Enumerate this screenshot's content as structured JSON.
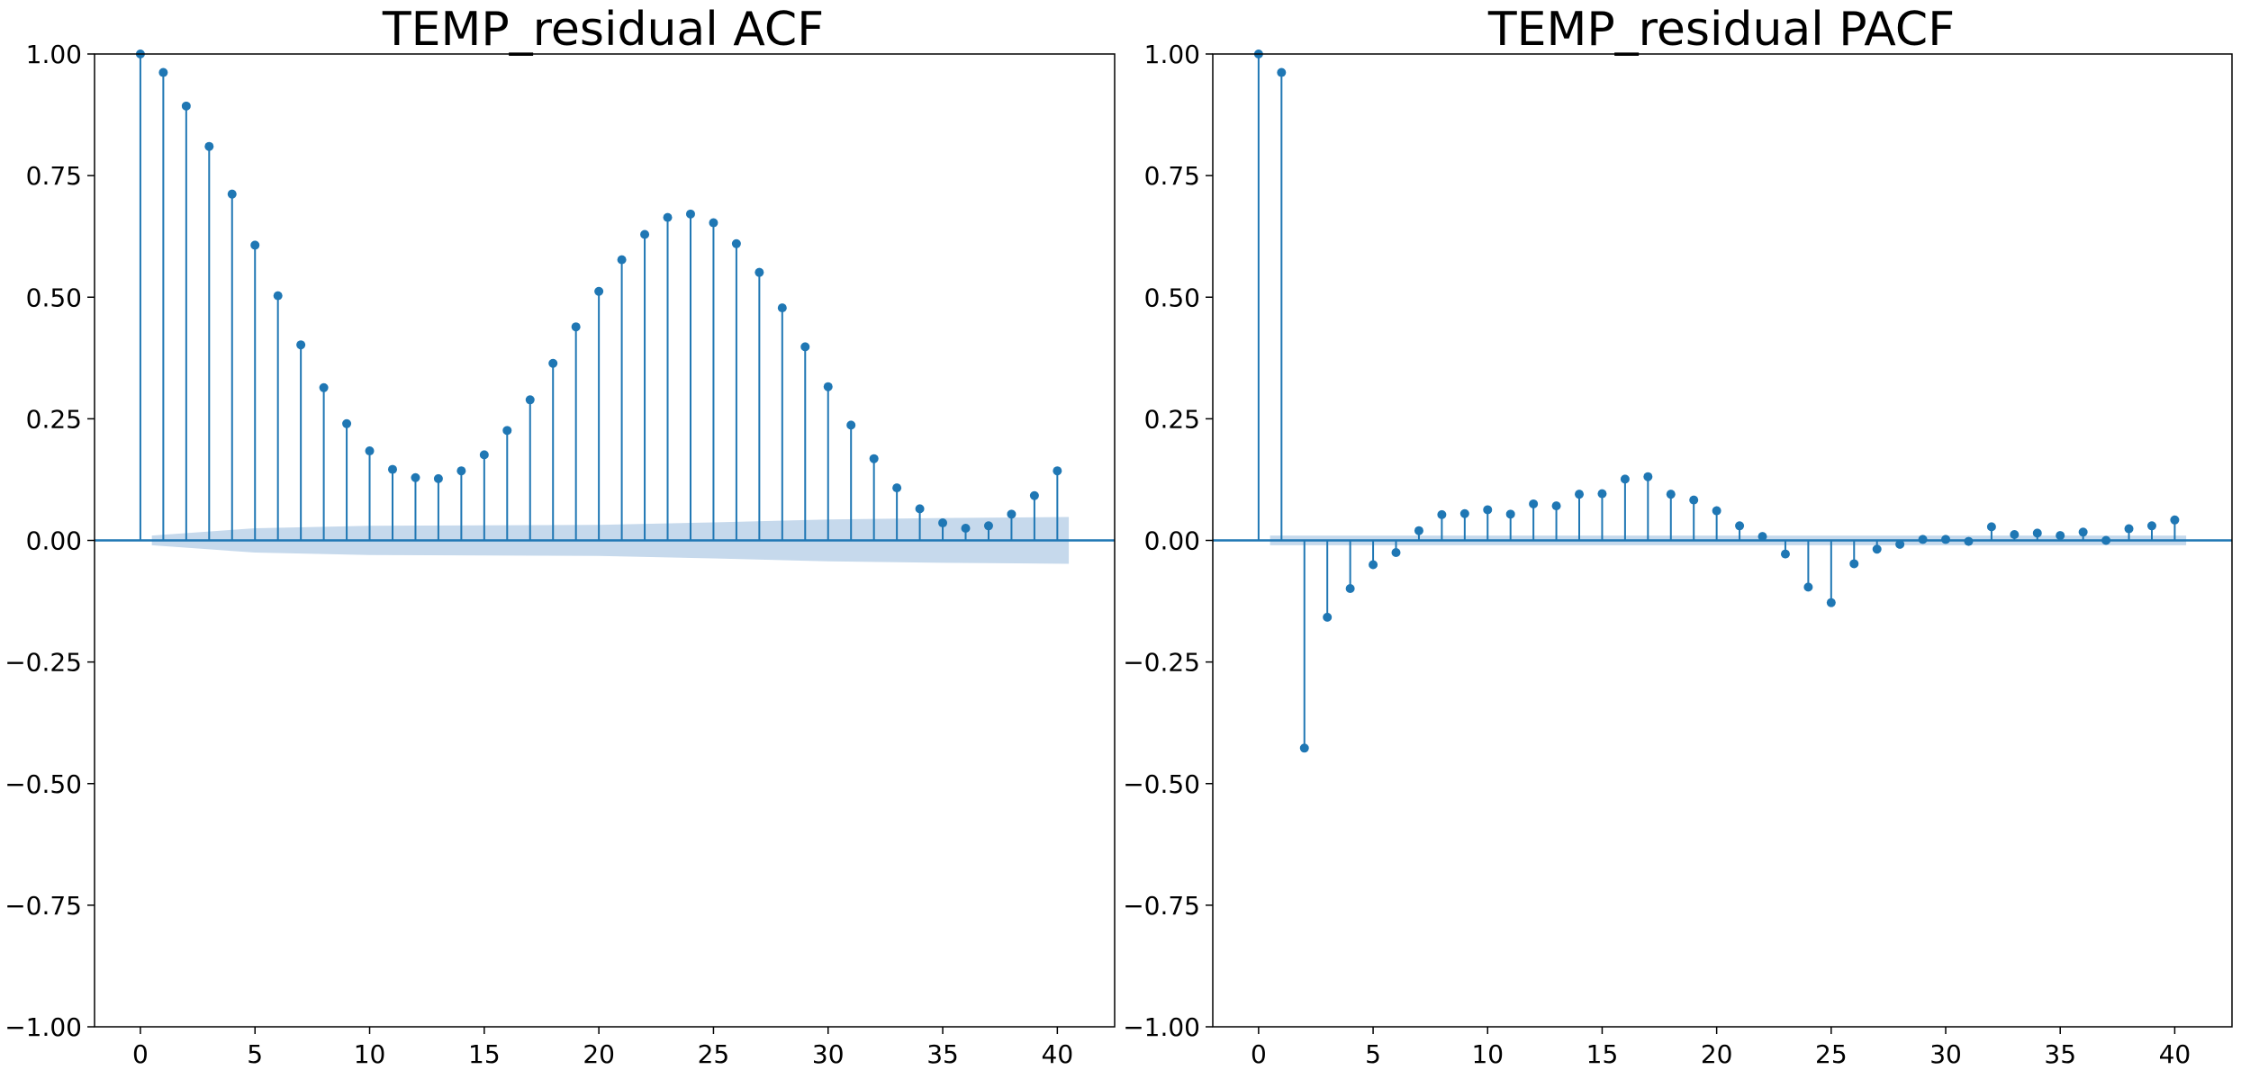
{
  "colors": {
    "stem": "#1f77b4",
    "marker": "#1f77b4",
    "zero_line": "#1f77b4",
    "conf_band": "#c6d9ec",
    "axes_frame": "#000000"
  },
  "chart_data": [
    {
      "type": "stem",
      "title": "TEMP_residual ACF",
      "xlabel": "",
      "ylabel": "",
      "xlim": [
        -2,
        42.5
      ],
      "ylim": [
        -1.0,
        1.0
      ],
      "xticks": [
        0,
        5,
        10,
        15,
        20,
        25,
        30,
        35,
        40
      ],
      "yticks": [
        -1.0,
        -0.75,
        -0.5,
        -0.25,
        0.0,
        0.25,
        0.5,
        0.75,
        1.0
      ],
      "ytick_labels": [
        "−1.00",
        "−0.75",
        "−0.50",
        "−0.25",
        "0.00",
        "0.25",
        "0.50",
        "0.75",
        "1.00"
      ],
      "grid": false,
      "lags": [
        0,
        1,
        2,
        3,
        4,
        5,
        6,
        7,
        8,
        9,
        10,
        11,
        12,
        13,
        14,
        15,
        16,
        17,
        18,
        19,
        20,
        21,
        22,
        23,
        24,
        25,
        26,
        27,
        28,
        29,
        30,
        31,
        32,
        33,
        34,
        35,
        36,
        37,
        38,
        39,
        40
      ],
      "values": [
        1.0,
        0.962,
        0.893,
        0.81,
        0.712,
        0.607,
        0.503,
        0.402,
        0.314,
        0.24,
        0.184,
        0.146,
        0.129,
        0.127,
        0.143,
        0.176,
        0.226,
        0.289,
        0.364,
        0.439,
        0.512,
        0.577,
        0.629,
        0.664,
        0.671,
        0.653,
        0.61,
        0.551,
        0.478,
        0.398,
        0.316,
        0.237,
        0.168,
        0.108,
        0.065,
        0.036,
        0.025,
        0.03,
        0.054,
        0.092,
        0.143
      ],
      "confidence_band": {
        "lags": [
          0.5,
          5,
          10,
          20,
          25,
          30,
          35,
          40.5
        ],
        "upper": [
          0.01,
          0.025,
          0.03,
          0.032,
          0.037,
          0.043,
          0.046,
          0.048
        ],
        "lower": [
          -0.01,
          -0.025,
          -0.03,
          -0.032,
          -0.037,
          -0.043,
          -0.046,
          -0.048
        ]
      }
    },
    {
      "type": "stem",
      "title": "TEMP_residual PACF",
      "xlabel": "",
      "ylabel": "",
      "xlim": [
        -2,
        42.5
      ],
      "ylim": [
        -1.0,
        1.0
      ],
      "xticks": [
        0,
        5,
        10,
        15,
        20,
        25,
        30,
        35,
        40
      ],
      "yticks": [
        -1.0,
        -0.75,
        -0.5,
        -0.25,
        0.0,
        0.25,
        0.5,
        0.75,
        1.0
      ],
      "ytick_labels": [
        "−1.00",
        "−0.75",
        "−0.50",
        "−0.25",
        "0.00",
        "0.25",
        "0.50",
        "0.75",
        "1.00"
      ],
      "grid": false,
      "lags": [
        0,
        1,
        2,
        3,
        4,
        5,
        6,
        7,
        8,
        9,
        10,
        11,
        12,
        13,
        14,
        15,
        16,
        17,
        18,
        19,
        20,
        21,
        22,
        23,
        24,
        25,
        26,
        27,
        28,
        29,
        30,
        31,
        32,
        33,
        34,
        35,
        36,
        37,
        38,
        39,
        40
      ],
      "values": [
        1.0,
        0.962,
        -0.427,
        -0.158,
        -0.099,
        -0.05,
        -0.025,
        0.02,
        0.053,
        0.055,
        0.063,
        0.054,
        0.075,
        0.071,
        0.095,
        0.096,
        0.126,
        0.131,
        0.095,
        0.083,
        0.061,
        0.03,
        0.008,
        -0.028,
        -0.096,
        -0.128,
        -0.048,
        -0.018,
        -0.008,
        0.002,
        0.002,
        -0.002,
        0.028,
        0.012,
        0.015,
        0.01,
        0.017,
        0.0,
        0.024,
        0.03,
        0.042
      ],
      "confidence_band": {
        "lags": [
          0.5,
          40.5
        ],
        "upper": [
          0.01,
          0.01
        ],
        "lower": [
          -0.01,
          -0.01
        ]
      }
    }
  ]
}
